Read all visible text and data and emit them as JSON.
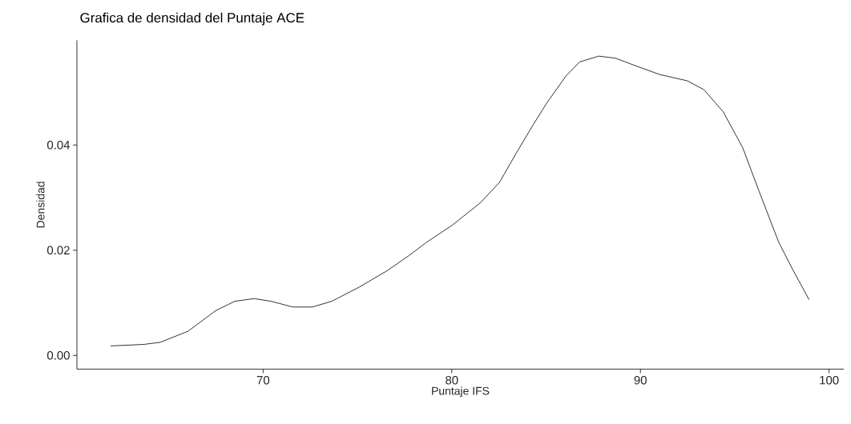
{
  "chart_data": {
    "type": "line",
    "title": "Grafica de densidad del Puntaje ACE",
    "xlabel": "Puntaje IFS",
    "ylabel": "Densidad",
    "x": [
      61.92,
      63.68,
      64.55,
      66.02,
      67.48,
      68.5,
      69.53,
      70.41,
      71.58,
      72.61,
      73.64,
      75.1,
      76.57,
      77.74,
      78.62,
      80.04,
      81.51,
      82.53,
      83.41,
      84.29,
      85.02,
      86.05,
      86.78,
      87.8,
      88.68,
      89.86,
      91.02,
      92.49,
      93.37,
      94.39,
      95.42,
      96.3,
      97.32,
      98.06,
      98.94
    ],
    "series": [
      {
        "color": "#000000",
        "values": [
          0.0018,
          0.0021,
          0.0025,
          0.0046,
          0.0085,
          0.0103,
          0.0108,
          0.0103,
          0.0092,
          0.0092,
          0.0103,
          0.013,
          0.0161,
          0.019,
          0.0214,
          0.0248,
          0.029,
          0.0329,
          0.0384,
          0.0437,
          0.0479,
          0.0531,
          0.0558,
          0.0569,
          0.0565,
          0.0549,
          0.0534,
          0.0522,
          0.0505,
          0.0463,
          0.0395,
          0.0311,
          0.0216,
          0.0164,
          0.0106
        ]
      }
    ],
    "xlim": [
      60.13,
      100.78
    ],
    "ylim": [
      -0.0026,
      0.0599
    ],
    "xticks": [
      70,
      80,
      90,
      100
    ],
    "yticks": [
      {
        "value": 0,
        "label": "0.00"
      },
      {
        "value": 0.02,
        "label": "0.02"
      },
      {
        "value": 0.04,
        "label": "0.04"
      }
    ],
    "grid": false,
    "legend": false,
    "marker": "none",
    "line_style": "solid"
  }
}
